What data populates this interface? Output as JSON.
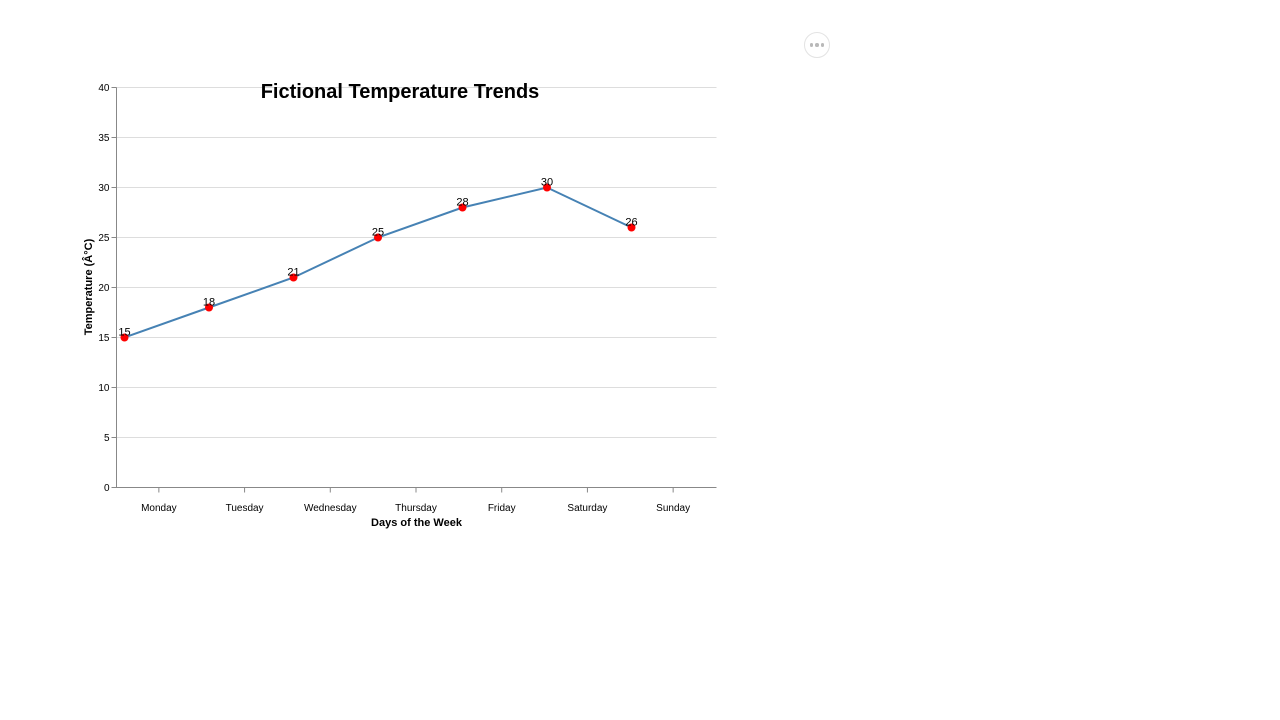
{
  "menu": {
    "icon": "more-horizontal-icon"
  },
  "colors": {
    "line": "#4682b4",
    "point": "#ff0000",
    "grid": "#dddddd",
    "axis": "#888888"
  },
  "chart_data": {
    "type": "line",
    "title": "Fictional Temperature Trends",
    "xlabel": "Days of the Week",
    "ylabel": "Temperature (Â°C)",
    "categories": [
      "Monday",
      "Tuesday",
      "Wednesday",
      "Thursday",
      "Friday",
      "Saturday",
      "Sunday"
    ],
    "series": [
      {
        "values": [
          15,
          18,
          21,
          25,
          28,
          30,
          26
        ]
      }
    ],
    "ylim": [
      0,
      40
    ],
    "yticks": [
      0,
      5,
      10,
      15,
      20,
      25,
      30,
      35,
      40
    ],
    "grid": true,
    "show_data_labels": true
  }
}
